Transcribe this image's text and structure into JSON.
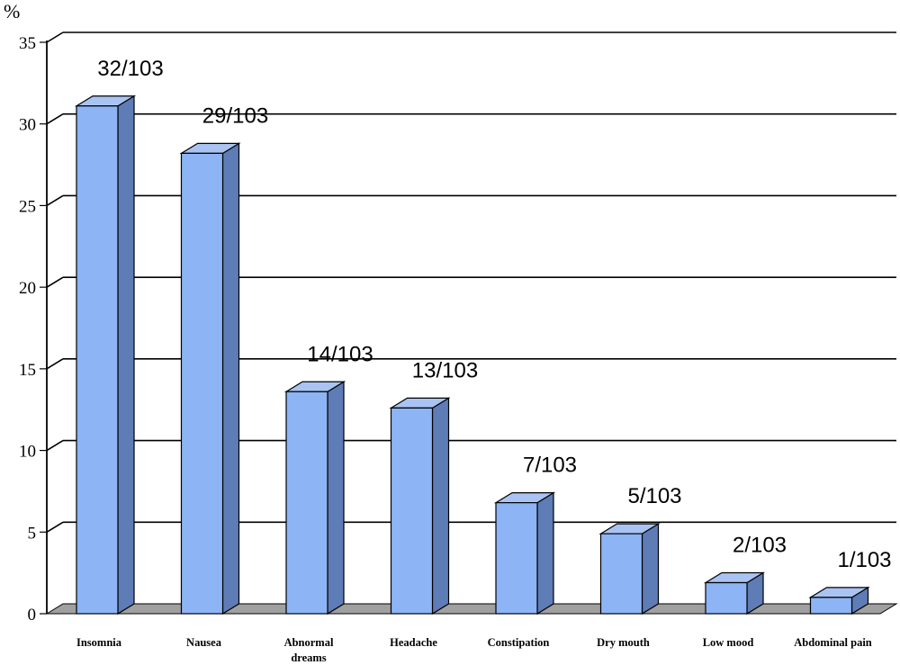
{
  "chart_data": {
    "type": "bar",
    "ylabel": "%",
    "ylim": [
      0,
      35
    ],
    "yticks": [
      0,
      5,
      10,
      15,
      20,
      25,
      30,
      35
    ],
    "grid": true,
    "categories": [
      [
        "Insomnia"
      ],
      [
        "Nausea"
      ],
      [
        "Abnormal",
        "dreams"
      ],
      [
        "Headache"
      ],
      [
        "Constipation"
      ],
      [
        "Dry mouth"
      ],
      [
        "Low mood"
      ],
      [
        "Abdominal pain"
      ]
    ],
    "values": [
      31.1,
      28.2,
      13.6,
      12.6,
      6.8,
      4.9,
      1.9,
      1.0
    ],
    "data_labels": [
      "32/103",
      "29/103",
      "14/103",
      "13/103",
      "7/103",
      "5/103",
      "2/103",
      "1/103"
    ],
    "colors": {
      "bar_front": "#8DB4F5",
      "bar_side": "#5E7CB6",
      "bar_top": "#A9C4F2",
      "floor": "#A0A0A0"
    }
  }
}
